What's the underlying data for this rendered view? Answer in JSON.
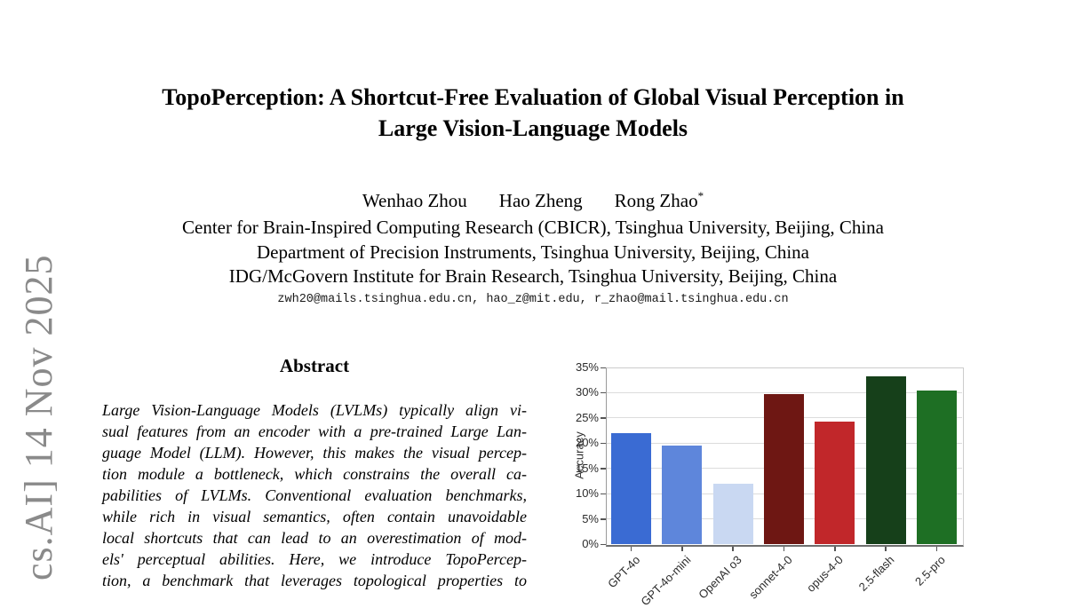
{
  "paper": {
    "arxiv_stamp": "cs.AI] 14 Nov 2025",
    "title_lines": [
      "TopoPerception: A Shortcut-Free Evaluation of Global Visual Perception in",
      "Large Vision-Language Models"
    ],
    "authors": [
      {
        "name": "Wenhao Zhou",
        "mark": ""
      },
      {
        "name": "Hao Zheng",
        "mark": ""
      },
      {
        "name": "Rong Zhao",
        "mark": "*"
      }
    ],
    "affiliations": [
      "Center for Brain-Inspired Computing Research (CBICR), Tsinghua University, Beijing, China",
      "Department of Precision Instruments, Tsinghua University, Beijing, China",
      "IDG/McGovern Institute for Brain Research, Tsinghua University, Beijing, China"
    ],
    "emails": "zwh20@mails.tsinghua.edu.cn, hao_z@mit.edu, r_zhao@mail.tsinghua.edu.cn",
    "abstract_heading": "Abstract",
    "abstract_lines": [
      "Large Vision-Language Models (LVLMs) typically align vi-",
      "sual features from an encoder with a pre-trained Large Lan-",
      "guage Model (LLM). However, this makes the visual percep-",
      "tion module a bottleneck, which constrains the overall ca-",
      "pabilities of LVLMs. Conventional evaluation benchmarks,",
      "while rich in visual semantics, often contain unavoidable",
      "local shortcuts that can lead to an overestimation of mod-",
      "els' perceptual abilities. Here, we introduce TopoPercep-",
      "tion, a benchmark that leverages topological properties to"
    ]
  },
  "chart_data": {
    "type": "bar",
    "title": "",
    "xlabel": "",
    "ylabel": "Accuracy",
    "ylim": [
      0,
      35
    ],
    "ytick_step": 5,
    "ytick_suffix": "%",
    "grid": true,
    "legend_position": "none",
    "categories": [
      "GPT-4o",
      "GPT-4o-mini",
      "OpenAI o3",
      "sonnet-4-0",
      "opus-4-0",
      "2.5-flash",
      "2.5-pro"
    ],
    "values": [
      22.0,
      19.6,
      12.0,
      29.8,
      24.3,
      33.2,
      30.4
    ],
    "bar_colors": [
      "#3a6bd3",
      "#5e86db",
      "#c9d8f2",
      "#6e1713",
      "#c1272a",
      "#16401a",
      "#1e6f24"
    ],
    "gridline_color": "#dcdcdc",
    "tick_color": "#555555"
  }
}
